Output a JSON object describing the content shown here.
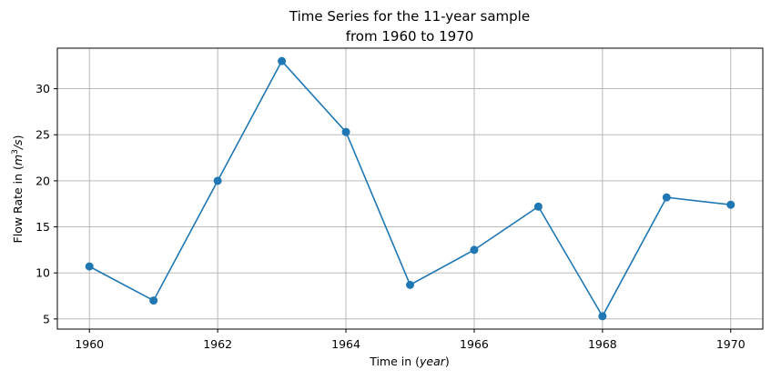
{
  "chart_data": {
    "type": "line",
    "title_line1": "Time Series for the 11-year sample",
    "title_line2": "from 1960 to 1970",
    "xlabel_prefix": "Time in (",
    "xlabel_unit": "year",
    "xlabel_suffix": ")",
    "ylabel_prefix": "Flow Rate in (",
    "ylabel_unit_base": "m",
    "ylabel_unit_sup": "3",
    "ylabel_unit_rest": "/s",
    "ylabel_suffix": ")",
    "x": [
      1960,
      1961,
      1962,
      1963,
      1964,
      1965,
      1966,
      1967,
      1968,
      1969,
      1970
    ],
    "series": [
      {
        "values": [
          10.7,
          7.0,
          20.0,
          33.0,
          25.3,
          8.7,
          12.5,
          17.2,
          5.3,
          18.2,
          17.4
        ]
      }
    ],
    "xlim": [
      1959.5,
      1970.5
    ],
    "ylim": [
      3.9,
      34.4
    ],
    "xticks": [
      1960,
      1962,
      1964,
      1966,
      1968,
      1970
    ],
    "yticks": [
      5,
      10,
      15,
      20,
      25,
      30
    ],
    "grid": true,
    "marker": "circle",
    "color": "#1f77b4"
  }
}
